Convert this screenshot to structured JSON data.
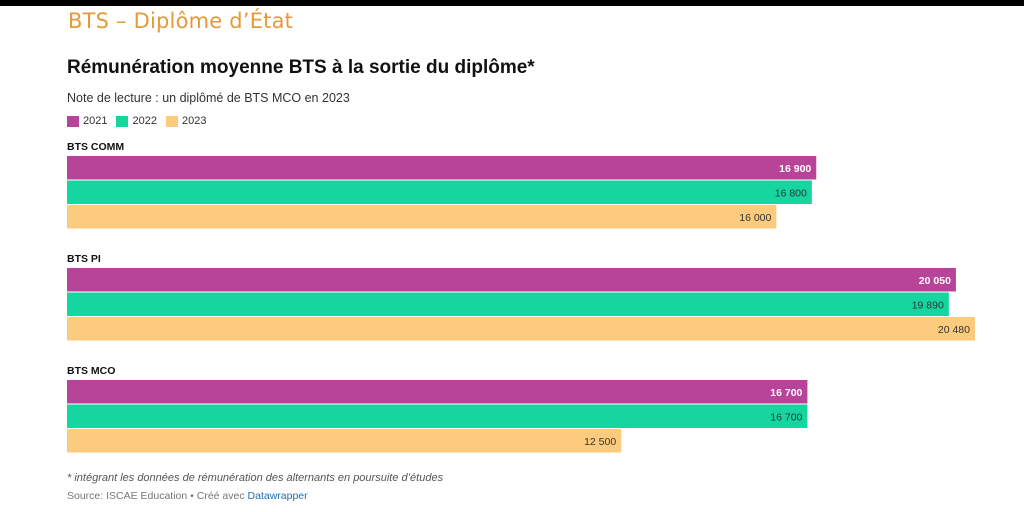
{
  "header": {
    "title": "BTS – Diplôme d’État"
  },
  "chart_data": {
    "type": "bar",
    "orientation": "horizontal",
    "title": "Rémunération moyenne BTS à la sortie du diplôme*",
    "subtitle": "Note de lecture : un diplômé de BTS MCO en 2023",
    "categories": [
      "BTS COMM",
      "BTS PI",
      "BTS MCO"
    ],
    "series": [
      {
        "name": "2021",
        "values": [
          16900,
          20050,
          16700
        ],
        "labels": [
          "16 900",
          "20 050",
          "16 700"
        ],
        "color": "#b8449a",
        "label_color": "#ffffff"
      },
      {
        "name": "2022",
        "values": [
          16800,
          19890,
          16700
        ],
        "labels": [
          "16 800",
          "19 890",
          "16 700"
        ],
        "color": "#16d6a0",
        "label_color": "#333333"
      },
      {
        "name": "2023",
        "values": [
          16000,
          20480,
          12500
        ],
        "labels": [
          "16 000",
          "20 480",
          "12 500"
        ],
        "color": "#fdcb7d",
        "label_color": "#333333"
      }
    ],
    "xlim": [
      0,
      20480
    ],
    "grid": false,
    "legend": "top-left"
  },
  "footer": {
    "footnote": "* intégrant les données de rémunération des alternants en poursuite d’études",
    "source_prefix": "Source: ISCAE Education • Créé avec ",
    "source_link": "Datawrapper"
  }
}
